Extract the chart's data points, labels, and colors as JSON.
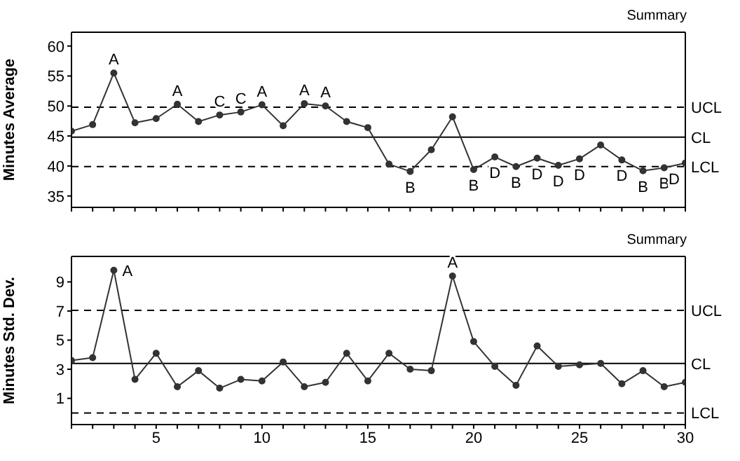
{
  "chart_data": [
    {
      "type": "line",
      "ylabel": "Minutes Average",
      "x": [
        1,
        2,
        3,
        4,
        5,
        6,
        7,
        8,
        9,
        10,
        11,
        12,
        13,
        14,
        15,
        16,
        17,
        18,
        19,
        20,
        21,
        22,
        23,
        24,
        25,
        26,
        27,
        28,
        29,
        30
      ],
      "series": [
        {
          "color": "#333333",
          "values": [
            45.8,
            46.9,
            55.5,
            47.2,
            47.9,
            50.3,
            47.4,
            48.5,
            49.0,
            50.2,
            46.7,
            50.4,
            50.0,
            47.4,
            46.4,
            40.3,
            39.1,
            42.7,
            48.2,
            39.4,
            41.5,
            39.9,
            41.3,
            40.1,
            41.2,
            43.5,
            41.0,
            39.2,
            39.7,
            40.5
          ]
        }
      ],
      "xlim": [
        1,
        30
      ],
      "ylim": [
        33.1,
        62.3
      ],
      "yticks": [
        35,
        40,
        45,
        50,
        55,
        60
      ],
      "xticks": [
        {
          "value": 1,
          "label": null
        },
        {
          "value": 2,
          "label": null
        },
        {
          "value": 3,
          "label": null
        },
        {
          "value": 4,
          "label": null
        },
        5,
        {
          "value": 6,
          "label": null
        },
        {
          "value": 7,
          "label": null
        },
        {
          "value": 8,
          "label": null
        },
        {
          "value": 9,
          "label": null
        },
        10,
        {
          "value": 11,
          "label": null
        },
        {
          "value": 12,
          "label": null
        },
        {
          "value": 13,
          "label": null
        },
        {
          "value": 14,
          "label": null
        },
        15,
        {
          "value": 16,
          "label": null
        },
        {
          "value": 17,
          "label": null
        },
        {
          "value": 18,
          "label": null
        },
        {
          "value": 19,
          "label": null
        },
        20,
        {
          "value": 21,
          "label": null
        },
        {
          "value": 22,
          "label": null
        },
        {
          "value": 23,
          "label": null
        },
        {
          "value": 24,
          "label": null
        },
        25,
        {
          "value": 26,
          "label": null
        },
        {
          "value": 27,
          "label": null
        },
        {
          "value": 28,
          "label": null
        },
        {
          "value": 29,
          "label": null
        },
        30
      ],
      "tick_labels": "y",
      "grid": false,
      "legend": false,
      "marker": "circle",
      "line_style": "solid",
      "ref_lines": [
        {
          "axis": "y",
          "value": 49.8,
          "label": "UCL",
          "line_style": "dashed",
          "color": "#000000"
        },
        {
          "axis": "y",
          "value": 44.8,
          "label": "CL",
          "line_style": "solid",
          "color": "#000000"
        },
        {
          "axis": "y",
          "value": 39.9,
          "label": "LCL",
          "line_style": "dashed",
          "color": "#000000"
        }
      ],
      "annotations": [
        "Summary",
        {
          "text": "A",
          "x": 3,
          "y": 55.5
        },
        {
          "text": "A",
          "x": 6,
          "y": 50.3
        },
        {
          "text": "C",
          "x": 8,
          "y": 48.5
        },
        {
          "text": "C",
          "x": 9,
          "y": 49.0
        },
        {
          "text": "A",
          "x": 10,
          "y": 50.2
        },
        {
          "text": "A",
          "x": 12,
          "y": 50.4
        },
        {
          "text": "A",
          "x": 13,
          "y": 50.0
        },
        {
          "text": "B",
          "x": 17,
          "y": 39.1
        },
        {
          "text": "B",
          "x": 20,
          "y": 39.4
        },
        {
          "text": "D",
          "x": 21,
          "y": 41.5
        },
        {
          "text": "B",
          "x": 22,
          "y": 39.9
        },
        {
          "text": "D",
          "x": 23,
          "y": 41.3
        },
        {
          "text": "D",
          "x": 24,
          "y": 40.1
        },
        {
          "text": "D",
          "x": 25,
          "y": 41.2
        },
        {
          "text": "D",
          "x": 27,
          "y": 41.0
        },
        {
          "text": "B",
          "x": 28,
          "y": 39.2
        },
        {
          "text": "B",
          "x": 29,
          "y": 39.7
        },
        {
          "text": "D",
          "x": 30,
          "y": 40.5
        }
      ]
    },
    {
      "type": "line",
      "ylabel": "Minutes Std. Dev.",
      "x": [
        1,
        2,
        3,
        4,
        5,
        6,
        7,
        8,
        9,
        10,
        11,
        12,
        13,
        14,
        15,
        16,
        17,
        18,
        19,
        20,
        21,
        22,
        23,
        24,
        25,
        26,
        27,
        28,
        29,
        30
      ],
      "series": [
        {
          "color": "#333333",
          "values": [
            3.6,
            3.8,
            9.8,
            2.3,
            4.1,
            1.8,
            2.9,
            1.7,
            2.3,
            2.2,
            3.5,
            1.8,
            2.1,
            4.1,
            2.2,
            4.1,
            3.0,
            2.9,
            9.4,
            4.9,
            3.2,
            1.9,
            4.6,
            3.2,
            3.3,
            3.4,
            2.0,
            2.9,
            1.8,
            2.1
          ]
        }
      ],
      "xlim": [
        1,
        30
      ],
      "ylim": [
        -0.8,
        10.75
      ],
      "yticks": [
        1,
        3,
        5,
        7,
        9
      ],
      "xticks": [
        {
          "value": 1,
          "label": null
        },
        {
          "value": 2,
          "label": null
        },
        {
          "value": 3,
          "label": null
        },
        {
          "value": 4,
          "label": null
        },
        5,
        {
          "value": 6,
          "label": null
        },
        {
          "value": 7,
          "label": null
        },
        {
          "value": 8,
          "label": null
        },
        {
          "value": 9,
          "label": null
        },
        10,
        {
          "value": 11,
          "label": null
        },
        {
          "value": 12,
          "label": null
        },
        {
          "value": 13,
          "label": null
        },
        {
          "value": 14,
          "label": null
        },
        15,
        {
          "value": 16,
          "label": null
        },
        {
          "value": 17,
          "label": null
        },
        {
          "value": 18,
          "label": null
        },
        {
          "value": 19,
          "label": null
        },
        20,
        {
          "value": 21,
          "label": null
        },
        {
          "value": 22,
          "label": null
        },
        {
          "value": 23,
          "label": null
        },
        {
          "value": 24,
          "label": null
        },
        25,
        {
          "value": 26,
          "label": null
        },
        {
          "value": 27,
          "label": null
        },
        {
          "value": 28,
          "label": null
        },
        {
          "value": 29,
          "label": null
        },
        30
      ],
      "grid": false,
      "legend": false,
      "marker": "circle",
      "line_style": "solid",
      "ref_lines": [
        {
          "axis": "y",
          "value": 7.05,
          "label": "UCL",
          "line_style": "dashed",
          "color": "#000000"
        },
        {
          "axis": "y",
          "value": 3.4,
          "label": "CL",
          "line_style": "solid",
          "color": "#000000"
        },
        {
          "axis": "y",
          "value": 0.0,
          "label": "LCL",
          "line_style": "dashed",
          "color": "#000000"
        }
      ],
      "annotations": [
        "Summary",
        {
          "text": "A",
          "x": 3,
          "y": 9.8
        },
        {
          "text": "A",
          "x": 19,
          "y": 9.4
        }
      ]
    }
  ]
}
